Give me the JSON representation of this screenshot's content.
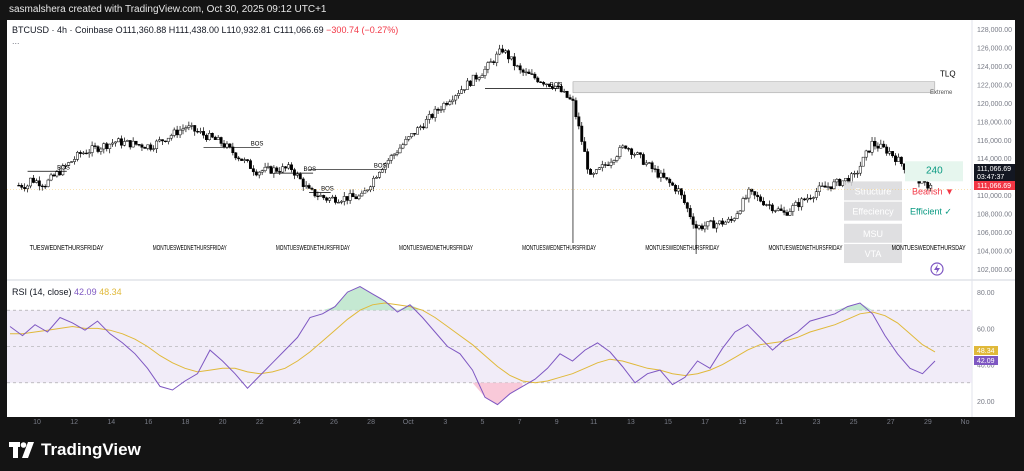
{
  "header": {
    "text": "sasmalshera created with TradingView.com, Oct 30, 2025 09:12 UTC+1"
  },
  "legend": {
    "symbol": "BTCUSD · 4h · Coinbase",
    "open": "O111,360.88",
    "high": "H111,438.00",
    "low": "L110,932.81",
    "close": "C111,066.69",
    "change": "−300.74 (−0.27%)"
  },
  "legend_more": "...",
  "rsi_legend": {
    "label": "RSI (14, close)",
    "v1": "42.09",
    "v2": "48.34"
  },
  "footer": {
    "brand": "TradingView"
  },
  "colors": {
    "up": "#089981",
    "down": "#f23645",
    "rsi": "#7e57c2",
    "rsi_ma": "#e0b93a",
    "dark": "#141414"
  },
  "chart_data": [
    {
      "type": "candlestick",
      "title": "BTCUSD · 4h · Coinbase",
      "x_tick_labels": [
        "10",
        "12",
        "14",
        "16",
        "18",
        "20",
        "22",
        "24",
        "26",
        "28",
        "Oct",
        "3",
        "5",
        "7",
        "9",
        "11",
        "13",
        "15",
        "17",
        "19",
        "21",
        "23",
        "25",
        "27",
        "29",
        "No"
      ],
      "y_tick_labels": [
        "128,000.00",
        "126,000.00",
        "124,000.00",
        "122,000.00",
        "120,000.00",
        "118,000.00",
        "116,000.00",
        "114,000.00",
        "112,000.00",
        "110,000.00",
        "108,000.00",
        "106,000.00",
        "104,000.00",
        "102,000.00"
      ],
      "ylim": [
        101000,
        129000
      ],
      "approx_close_path": [
        {
          "x": "Sep 9",
          "y": 111800
        },
        {
          "x": "Sep 10",
          "y": 111200
        },
        {
          "x": "Sep 12",
          "y": 114500
        },
        {
          "x": "Sep 14",
          "y": 115800
        },
        {
          "x": "Sep 16",
          "y": 115300
        },
        {
          "x": "Sep 18",
          "y": 117400
        },
        {
          "x": "Sep 20",
          "y": 115700
        },
        {
          "x": "Sep 22",
          "y": 112600
        },
        {
          "x": "Sep 24",
          "y": 112900
        },
        {
          "x": "Sep 25",
          "y": 110400
        },
        {
          "x": "Sep 26",
          "y": 109600
        },
        {
          "x": "Sep 28",
          "y": 109800
        },
        {
          "x": "Sep 29",
          "y": 112800
        },
        {
          "x": "Oct 1",
          "y": 116800
        },
        {
          "x": "Oct 3",
          "y": 120500
        },
        {
          "x": "Oct 5",
          "y": 123600
        },
        {
          "x": "Oct 6",
          "y": 125800
        },
        {
          "x": "Oct 7",
          "y": 123400
        },
        {
          "x": "Oct 9",
          "y": 121800
        },
        {
          "x": "Oct 10",
          "y": 120000
        },
        {
          "x": "Oct 11",
          "y": 111800
        },
        {
          "x": "Oct 13",
          "y": 115400
        },
        {
          "x": "Oct 15",
          "y": 112000
        },
        {
          "x": "Oct 16",
          "y": 110500
        },
        {
          "x": "Oct 17",
          "y": 106500
        },
        {
          "x": "Oct 19",
          "y": 107200
        },
        {
          "x": "Oct 20",
          "y": 110200
        },
        {
          "x": "Oct 22",
          "y": 108000
        },
        {
          "x": "Oct 24",
          "y": 110600
        },
        {
          "x": "Oct 26",
          "y": 112000
        },
        {
          "x": "Oct 27",
          "y": 115600
        },
        {
          "x": "Oct 28",
          "y": 114700
        },
        {
          "x": "Oct 29",
          "y": 112800
        },
        {
          "x": "Oct 30",
          "y": 111066.69
        }
      ],
      "low_wicks": [
        {
          "x": "Oct 10",
          "y": 104800
        },
        {
          "x": "Oct 17",
          "y": 103600
        }
      ],
      "high_wicks": [
        {
          "x": "Oct 6",
          "y": 126300
        },
        {
          "x": "Oct 27",
          "y": 116300
        }
      ],
      "annotations": [
        {
          "text": "BOS",
          "x": "Sep 10",
          "y": 112800
        },
        {
          "text": "BOS",
          "x": "Sep 21",
          "y": 115400
        },
        {
          "text": "BOS",
          "x": "Sep 24",
          "y": 112600
        },
        {
          "text": "BOS",
          "x": "Sep 25",
          "y": 110500
        },
        {
          "text": "BOS",
          "x": "Sep 28",
          "y": 113000
        },
        {
          "text": "BOS",
          "x": "Oct 8",
          "y": 121800
        },
        {
          "text": "TLQ",
          "x": "Oct 30",
          "y": 123000
        },
        {
          "text": "Extreme",
          "x": "Oct 30",
          "y": 121600
        },
        {
          "text": "240",
          "x": "Oct 30",
          "y": 112800
        },
        {
          "text": "Bearish ▼",
          "x": "Oct 30",
          "y": 110400
        },
        {
          "text": "Efficient ✓",
          "x": "Oct 30",
          "y": 108200
        },
        {
          "text": "Structure",
          "x": "Oct 25",
          "y": 110400
        },
        {
          "text": "Effeciency",
          "x": "Oct 25",
          "y": 108200
        },
        {
          "text": "MSU",
          "x": "Oct 25",
          "y": 105800
        },
        {
          "text": "VTA",
          "x": "Oct 25",
          "y": 103600
        }
      ],
      "day_label_clusters": [
        {
          "x": "Sep 9",
          "text": "TUESWEDNETHURSFRIDAY"
        },
        {
          "x": "Sep 16",
          "text": "MONTUESWEDNETHURSFRIDAY"
        },
        {
          "x": "Sep 23",
          "text": "MONTUESWEDNETHURSFRIDAY"
        },
        {
          "x": "Sep 30",
          "text": "MONTUESWEDNETHURSFRIDAY"
        },
        {
          "x": "Oct 7",
          "text": "MONTUESWEDNETHURSFRIDAY"
        },
        {
          "x": "Oct 14",
          "text": "MONTUESWEDNETHURSFRIDAY"
        },
        {
          "x": "Oct 21",
          "text": "MONTUESWEDNETHURSFRIDAY"
        },
        {
          "x": "Oct 28",
          "text": "MONTUESWEDNETHURSDAY"
        }
      ],
      "price_tags": [
        {
          "label": "111,066.69",
          "y": 111066.69
        },
        {
          "label": "03:47:37",
          "y": 110300
        },
        {
          "label": "111,066.69",
          "y": 109700
        }
      ],
      "zone": {
        "from_y": 121100,
        "to_y": 122300,
        "from_x": "Oct 10",
        "to_x": "Oct 30"
      }
    },
    {
      "type": "line",
      "title": "RSI (14, close)",
      "y_tick_labels": [
        "80.00",
        "60.00",
        "40.00",
        "20.00"
      ],
      "ylim": [
        15,
        85
      ],
      "band": [
        30,
        70
      ],
      "series": [
        {
          "name": "RSI",
          "values": [
            61,
            56,
            62,
            58,
            66,
            63,
            59,
            64,
            57,
            52,
            46,
            38,
            28,
            26,
            31,
            35,
            48,
            42,
            35,
            27,
            34,
            41,
            48,
            55,
            66,
            68,
            72,
            80,
            83,
            79,
            75,
            69,
            73,
            66,
            58,
            50,
            46,
            37,
            22,
            18,
            24,
            28,
            32,
            38,
            46,
            42,
            48,
            52,
            47,
            39,
            30,
            35,
            37,
            29,
            33,
            42,
            38,
            49,
            58,
            62,
            55,
            48,
            54,
            58,
            64,
            66,
            68,
            72,
            74,
            68,
            56,
            46,
            38,
            35,
            42
          ]
        },
        {
          "name": "RSI MA",
          "values": [
            57,
            57,
            58,
            59,
            60,
            61,
            60,
            60,
            59,
            57,
            54,
            50,
            45,
            41,
            38,
            36,
            37,
            38,
            38,
            36,
            35,
            36,
            38,
            42,
            47,
            53,
            59,
            65,
            70,
            73,
            74,
            73,
            72,
            70,
            66,
            61,
            56,
            51,
            45,
            39,
            34,
            31,
            30,
            31,
            33,
            35,
            38,
            41,
            43,
            42,
            40,
            38,
            37,
            35,
            34,
            35,
            37,
            40,
            44,
            48,
            51,
            52,
            53,
            55,
            58,
            60,
            62,
            65,
            68,
            69,
            67,
            63,
            57,
            51,
            47
          ]
        }
      ],
      "value_tags": [
        {
          "label": "48.34"
        },
        {
          "label": "42.09"
        }
      ]
    }
  ]
}
